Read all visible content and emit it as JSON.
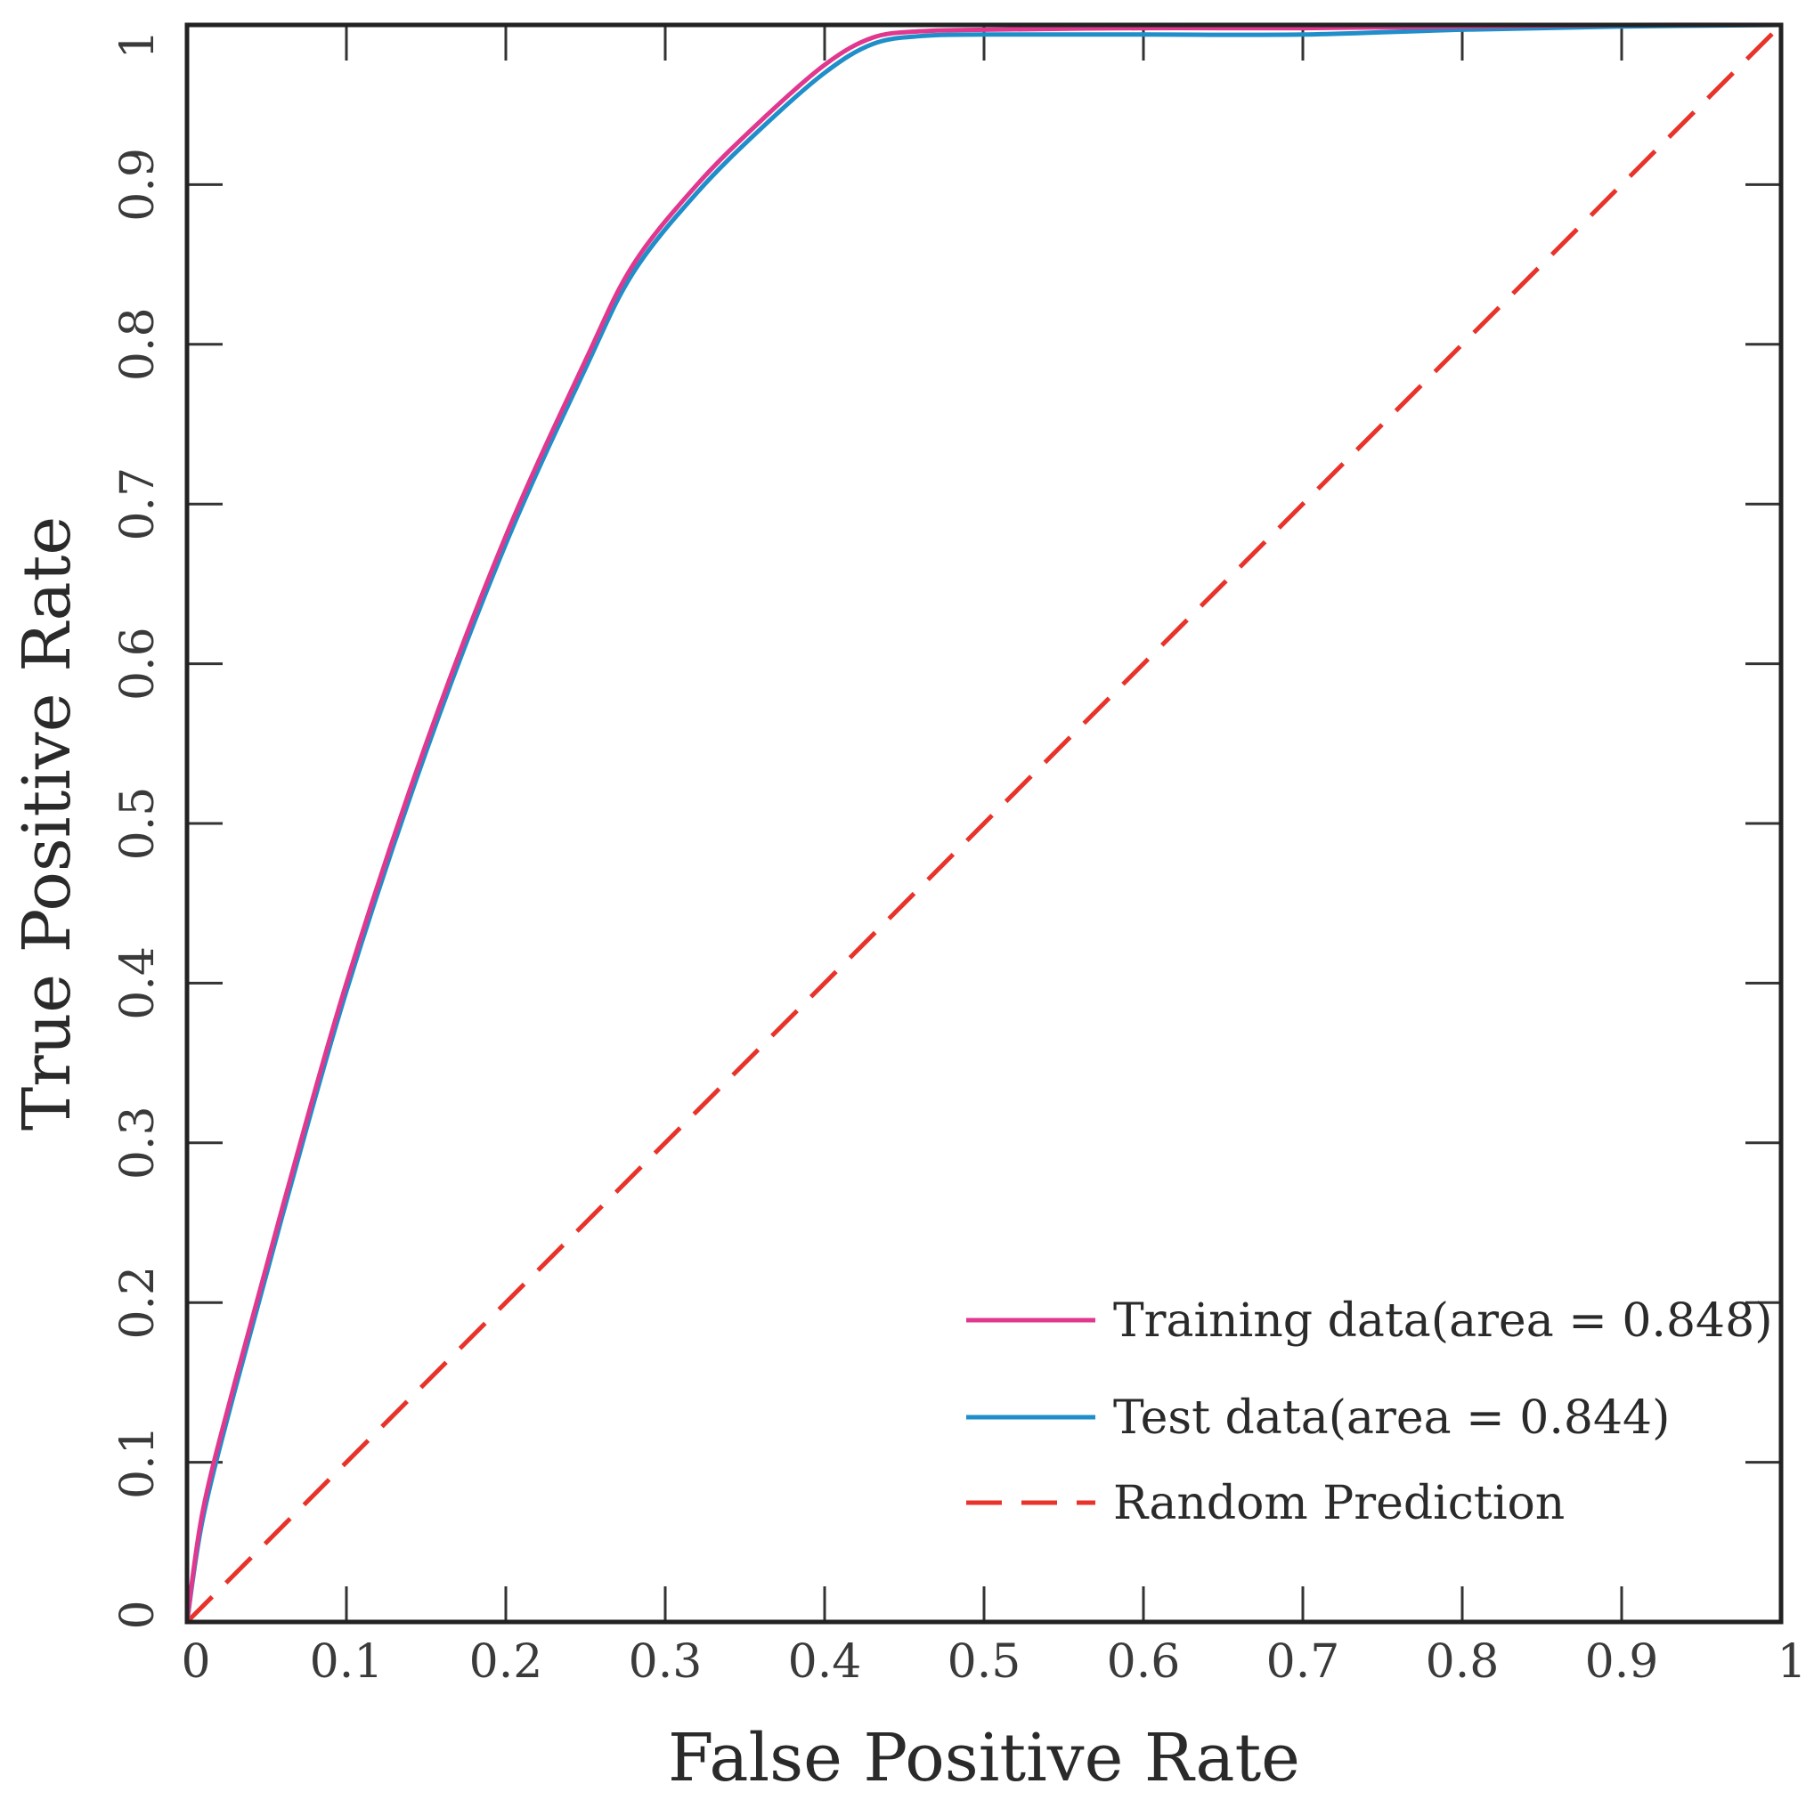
{
  "chart_data": {
    "type": "line",
    "title": "",
    "xlabel": "False Positive Rate",
    "ylabel": "True Positive Rate",
    "xlim": [
      0,
      1
    ],
    "ylim": [
      0,
      1
    ],
    "xticks": [
      "0",
      "0.1",
      "0.2",
      "0.3",
      "0.4",
      "0.5",
      "0.6",
      "0.7",
      "0.8",
      "0.9",
      "1"
    ],
    "yticks": [
      "0",
      "0.1",
      "0.2",
      "0.3",
      "0.4",
      "0.5",
      "0.6",
      "0.7",
      "0.8",
      "0.9",
      "1"
    ],
    "grid": false,
    "legend_position": "bottom-right",
    "series": [
      {
        "name": "Training data(area = 0.848)",
        "color": "#e0388e",
        "style": "solid",
        "x": [
          0,
          0.01,
          0.03,
          0.06,
          0.1,
          0.15,
          0.2,
          0.25,
          0.28,
          0.32,
          0.36,
          0.4,
          0.43,
          0.46,
          0.5,
          0.6,
          0.7,
          0.8,
          0.9,
          1.0
        ],
        "y": [
          0,
          0.07,
          0.15,
          0.26,
          0.4,
          0.55,
          0.68,
          0.79,
          0.85,
          0.9,
          0.94,
          0.975,
          0.992,
          0.996,
          0.997,
          0.998,
          0.998,
          0.999,
          1.0,
          1.0
        ]
      },
      {
        "name": "Test data(area = 0.844)",
        "color": "#1f8ec9",
        "style": "solid",
        "x": [
          0,
          0.01,
          0.03,
          0.06,
          0.1,
          0.15,
          0.2,
          0.25,
          0.28,
          0.32,
          0.36,
          0.4,
          0.43,
          0.46,
          0.5,
          0.6,
          0.7,
          0.8,
          0.9,
          1.0
        ],
        "y": [
          0,
          0.065,
          0.145,
          0.255,
          0.395,
          0.545,
          0.675,
          0.785,
          0.845,
          0.895,
          0.935,
          0.97,
          0.988,
          0.993,
          0.994,
          0.994,
          0.994,
          0.997,
          0.999,
          1.0
        ]
      },
      {
        "name": "Random Prediction",
        "color": "#e8332a",
        "style": "dashed",
        "x": [
          0,
          1
        ],
        "y": [
          0,
          1
        ]
      }
    ]
  }
}
